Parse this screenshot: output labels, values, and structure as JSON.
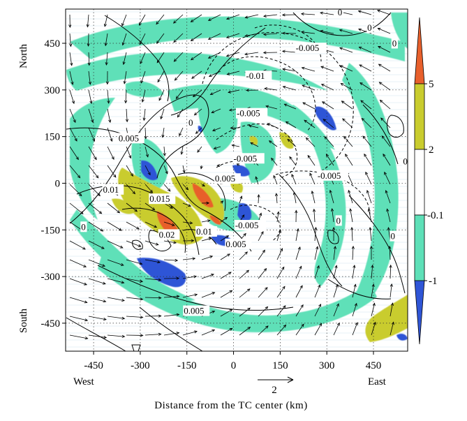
{
  "chart_data": {
    "type": "contour-vector-map",
    "xlabel": "Distance from the TC center (km)",
    "side_labels": {
      "left": "West",
      "right": "East",
      "top": "North",
      "bottom": "South"
    },
    "x_ticks": [
      "-450",
      "-300",
      "-150",
      "0",
      "150",
      "300",
      "450"
    ],
    "y_ticks": [
      "450",
      "300",
      "150",
      "0",
      "-150",
      "-300",
      "-450"
    ],
    "xlim": [
      -540,
      560
    ],
    "ylim": [
      -540,
      560
    ],
    "grid": true,
    "reference_vector": {
      "value": "2"
    },
    "colorbar": {
      "tick_labels": [
        "5",
        "2",
        "-0.1",
        "-1"
      ],
      "bands": [
        {
          "range": "> 5",
          "color": "#e8602c"
        },
        {
          "range": "2 to 5",
          "color": "#c9cc2e"
        },
        {
          "range": "-0.1 to 2",
          "color": "#ffffff"
        },
        {
          "range": "-1 to -0.1",
          "color": "#5ee0b8"
        },
        {
          "range": "< -1",
          "color": "#2f55d6"
        }
      ]
    },
    "contour_labels": [
      {
        "text": "0",
        "x": -145,
        "y": 185
      },
      {
        "text": "0.005",
        "x": -370,
        "y": 135
      },
      {
        "text": "0.01",
        "x": -420,
        "y": -30
      },
      {
        "text": "0.015",
        "x": -270,
        "y": -60
      },
      {
        "text": "0.02",
        "x": -240,
        "y": -175
      },
      {
        "text": "0.01",
        "x": -120,
        "y": -165
      },
      {
        "text": "0.005",
        "x": -60,
        "y": 5
      },
      {
        "text": "-0.005",
        "x": 10,
        "y": 215
      },
      {
        "text": "-0.005",
        "x": 0,
        "y": 70
      },
      {
        "text": "-0.005",
        "x": 200,
        "y": 425
      },
      {
        "text": "-0.01",
        "x": 40,
        "y": 335
      },
      {
        "text": "-0.005",
        "x": 270,
        "y": 15
      },
      {
        "text": "-0.005",
        "x": 5,
        "y": -145
      },
      {
        "text": "0.005",
        "x": -25,
        "y": -205
      },
      {
        "text": "0.005",
        "x": -160,
        "y": -420
      },
      {
        "text": "0",
        "x": -490,
        "y": -150
      },
      {
        "text": "0",
        "x": 430,
        "y": 490
      },
      {
        "text": "0",
        "x": 510,
        "y": 440
      },
      {
        "text": "0",
        "x": 545,
        "y": 60
      },
      {
        "text": "0",
        "x": 330,
        "y": -130
      },
      {
        "text": "0",
        "x": 505,
        "y": -180
      },
      {
        "text": "0",
        "x": 335,
        "y": 540
      }
    ]
  }
}
